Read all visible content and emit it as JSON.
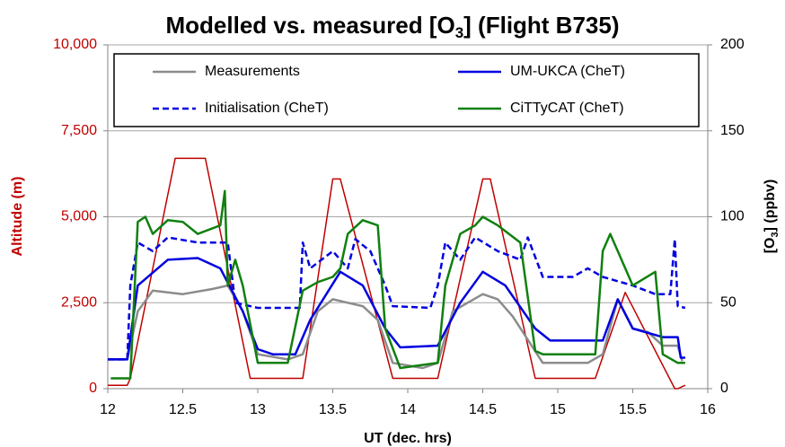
{
  "chart_data": {
    "type": "line",
    "title": {
      "before": "Modelled vs. measured [O",
      "sub": "3",
      "after": "] (Flight B735)"
    },
    "ylabel": "Altitude (m)",
    "y2label": {
      "before": "[O",
      "sub": "3",
      "after": "] (ppbv)"
    },
    "xlabel": "UT (dec. hrs)",
    "xlim": [
      12,
      16
    ],
    "xticks": [
      12,
      12.5,
      13,
      13.5,
      14,
      14.5,
      15,
      15.5,
      16
    ],
    "ylim": [
      0,
      10000
    ],
    "yticks": [
      0,
      {
        "value": 2500,
        "label": "2,500"
      },
      {
        "value": 5000,
        "label": "5,000"
      },
      {
        "value": 7500,
        "label": "7,500"
      },
      {
        "value": 10000,
        "label": "10,000"
      }
    ],
    "y2lim": [
      0,
      200
    ],
    "y2ticks": [
      0,
      50,
      100,
      150,
      200
    ],
    "grid": true,
    "ylabel_color": "#c00000",
    "series": [
      {
        "color": "#c00000",
        "axis": "y",
        "x": [
          12.0,
          12.13,
          12.15,
          12.45,
          12.65,
          12.95,
          13.3,
          13.5,
          13.55,
          13.9,
          14.2,
          14.5,
          14.55,
          14.85,
          15.25,
          15.45,
          15.78,
          15.8,
          15.85
        ],
        "values": [
          100,
          100,
          300,
          6700,
          6700,
          300,
          300,
          6100,
          6100,
          300,
          300,
          6100,
          6100,
          300,
          300,
          2800,
          0,
          0,
          100
        ]
      },
      {
        "name": "Measurements",
        "color": "#8c8c8c",
        "axis": "y2",
        "x": [
          12.0,
          12.13,
          12.2,
          12.3,
          12.5,
          12.7,
          12.8,
          12.9,
          13.0,
          13.2,
          13.3,
          13.4,
          13.5,
          13.6,
          13.7,
          13.8,
          13.9,
          14.1,
          14.2,
          14.3,
          14.5,
          14.6,
          14.7,
          14.9,
          15.2,
          15.3,
          15.4,
          15.5,
          15.6,
          15.7,
          15.8,
          15.83
        ],
        "values": [
          17,
          17,
          45,
          57,
          55,
          58,
          60,
          45,
          20,
          17,
          20,
          45,
          52,
          50,
          48,
          40,
          15,
          12,
          15,
          45,
          55,
          52,
          42,
          15,
          15,
          20,
          52,
          35,
          33,
          25,
          25,
          16
        ]
      },
      {
        "name": "UM-UKCA (CheT)",
        "color": "#0000e0",
        "axis": "y2",
        "x": [
          12.0,
          12.13,
          12.2,
          12.4,
          12.6,
          12.75,
          12.9,
          13.0,
          13.1,
          13.25,
          13.35,
          13.55,
          13.7,
          13.85,
          13.95,
          14.2,
          14.35,
          14.5,
          14.65,
          14.85,
          14.95,
          15.3,
          15.4,
          15.5,
          15.7,
          15.8,
          15.82,
          15.85
        ],
        "values": [
          17,
          17,
          60,
          75,
          76,
          70,
          45,
          23,
          20,
          20,
          40,
          68,
          60,
          35,
          24,
          25,
          50,
          68,
          60,
          35,
          28,
          28,
          52,
          35,
          30,
          30,
          18,
          18
        ]
      },
      {
        "name": "Initialisation (CheT)",
        "color": "#0000e0",
        "axis": "y2",
        "line_style": "dashed",
        "x": [
          12.0,
          12.13,
          12.15,
          12.2,
          12.3,
          12.4,
          12.6,
          12.8,
          12.85,
          13.0,
          13.28,
          13.3,
          13.35,
          13.5,
          13.6,
          13.65,
          13.75,
          13.85,
          13.9,
          14.15,
          14.2,
          14.25,
          14.35,
          14.45,
          14.6,
          14.75,
          14.8,
          14.9,
          15.1,
          15.2,
          15.3,
          15.5,
          15.65,
          15.75,
          15.78,
          15.8,
          15.85
        ],
        "values": [
          17,
          17,
          60,
          85,
          80,
          88,
          85,
          85,
          50,
          47,
          47,
          85,
          70,
          80,
          70,
          87,
          80,
          60,
          48,
          47,
          60,
          85,
          75,
          88,
          80,
          75,
          88,
          65,
          65,
          70,
          65,
          60,
          55,
          55,
          87,
          48,
          47
        ]
      },
      {
        "name": "CiTTyCAT (CheT)",
        "color": "#108010",
        "axis": "y2",
        "x": [
          12.02,
          12.15,
          12.2,
          12.25,
          12.3,
          12.4,
          12.5,
          12.6,
          12.75,
          12.78,
          12.8,
          12.85,
          12.9,
          13.0,
          13.2,
          13.3,
          13.4,
          13.5,
          13.55,
          13.6,
          13.7,
          13.8,
          13.85,
          13.95,
          14.2,
          14.25,
          14.35,
          14.45,
          14.5,
          14.6,
          14.75,
          14.85,
          14.9,
          15.25,
          15.3,
          15.35,
          15.4,
          15.5,
          15.65,
          15.7,
          15.8,
          15.85
        ],
        "values": [
          6,
          6,
          97,
          100,
          90,
          98,
          97,
          90,
          95,
          115,
          60,
          75,
          60,
          15,
          15,
          57,
          62,
          65,
          70,
          90,
          98,
          95,
          35,
          12,
          15,
          60,
          90,
          95,
          100,
          95,
          85,
          22,
          20,
          20,
          80,
          90,
          80,
          60,
          68,
          20,
          15,
          15
        ]
      }
    ]
  }
}
